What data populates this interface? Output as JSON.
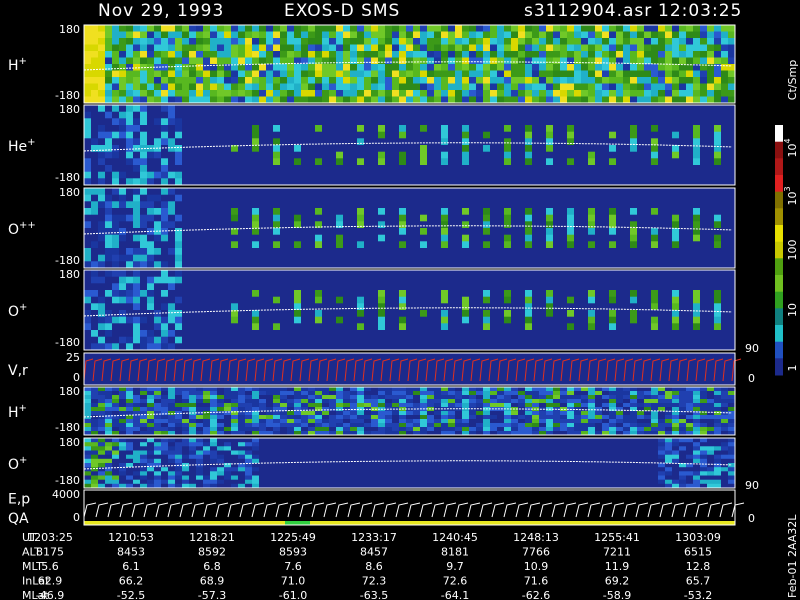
{
  "header": {
    "date": "Nov 29, 1993",
    "instrument": "EXOS-D SMS",
    "file": "s3112904.asr",
    "time": "12:03:25"
  },
  "panels": [
    {
      "label": {
        "text": "H",
        "sup": "+"
      },
      "ticks": [
        "180",
        "-180"
      ]
    },
    {
      "label": {
        "text": "He",
        "sup": "+"
      },
      "ticks": [
        "180",
        "-180"
      ]
    },
    {
      "label": {
        "text": "O",
        "sup": "++"
      },
      "ticks": [
        "180",
        "-180"
      ]
    },
    {
      "label": {
        "text": "O",
        "sup": "+"
      },
      "ticks": [
        "180",
        "-180"
      ]
    },
    {
      "label": {
        "text": "V,r"
      },
      "ticks": [
        "25",
        "0"
      ],
      "right_ticks": [
        "90",
        "0"
      ]
    },
    {
      "label": {
        "text": "H",
        "sup": "+"
      },
      "ticks": [
        "180",
        "-180"
      ]
    },
    {
      "label": {
        "text": "O",
        "sup": "+"
      },
      "ticks": [
        "180",
        "-180"
      ]
    },
    {
      "label": {
        "text": "E,p"
      },
      "label2": "QA",
      "ticks": [
        "4000",
        "0"
      ],
      "right_ticks": [
        "90",
        "0"
      ]
    }
  ],
  "colorbar": {
    "unit": "Ct/Smp",
    "labels": [
      {
        "text": "10",
        "sup": "4"
      },
      {
        "text": "10",
        "sup": "3"
      },
      {
        "text": "100"
      },
      {
        "text": "10"
      },
      {
        "text": "1"
      }
    ]
  },
  "table": {
    "rows": [
      {
        "name": "UT",
        "cells": [
          "1203:25",
          "1210:53",
          "1218:21",
          "1225:49",
          "1233:17",
          "1240:45",
          "1248:13",
          "1255:41",
          "1303:09"
        ]
      },
      {
        "name": "ALT",
        "cells": [
          "8175",
          "8453",
          "8592",
          "8593",
          "8457",
          "8181",
          "7766",
          "7211",
          "6515"
        ]
      },
      {
        "name": "MLT",
        "cells": [
          "5.6",
          "6.1",
          "6.8",
          "7.6",
          "8.6",
          "9.7",
          "10.9",
          "11.9",
          "12.8"
        ]
      },
      {
        "name": "InLat",
        "cells": [
          "62.9",
          "66.2",
          "68.9",
          "71.0",
          "72.3",
          "72.6",
          "71.6",
          "69.2",
          "65.7"
        ]
      },
      {
        "name": "MLat",
        "cells": [
          "-46.9",
          "-52.5",
          "-57.3",
          "-61.0",
          "-63.5",
          "-64.1",
          "-62.6",
          "-58.9",
          "-53.2"
        ]
      }
    ]
  },
  "footer": "Feb-01 2AA32L"
}
